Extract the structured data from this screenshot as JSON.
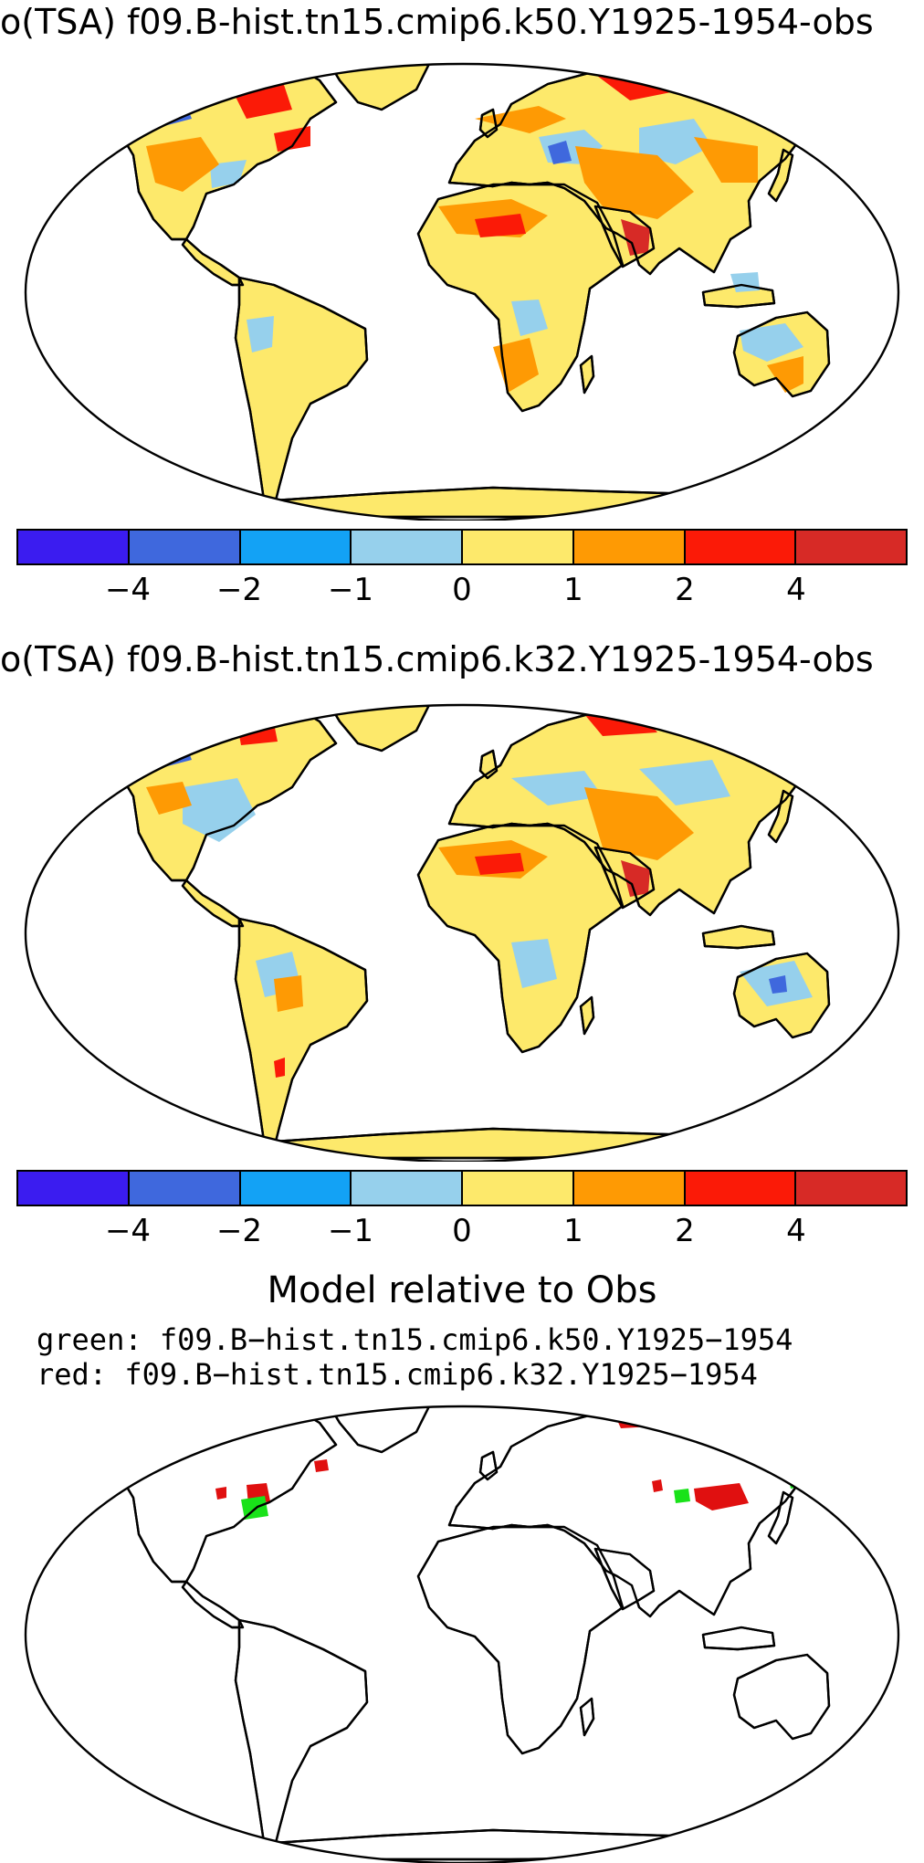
{
  "panel1": {
    "title": "o(TSA) f09.B-hist.tn15.cmip6.k50.Y1925-1954-obs"
  },
  "panel2": {
    "title": "o(TSA) f09.B-hist.tn15.cmip6.k32.Y1925-1954-obs"
  },
  "colorbar": {
    "colors": [
      "#3b1cf0",
      "#3f68dd",
      "#13a2f5",
      "#96d0ec",
      "#fde96b",
      "#fe9a04",
      "#fb1a07",
      "#d72a26"
    ],
    "tick_labels": [
      "−4",
      "−2",
      "−1",
      "0",
      "1",
      "2",
      "4"
    ]
  },
  "comparison": {
    "title": "Model relative to Obs",
    "legend_green": "green: f09.B−hist.tn15.cmip6.k50.Y1925−1954",
    "legend_red": "red: f09.B−hist.tn15.cmip6.k32.Y1925−1954",
    "green_color": "#19e219",
    "red_color": "#e01010"
  }
}
